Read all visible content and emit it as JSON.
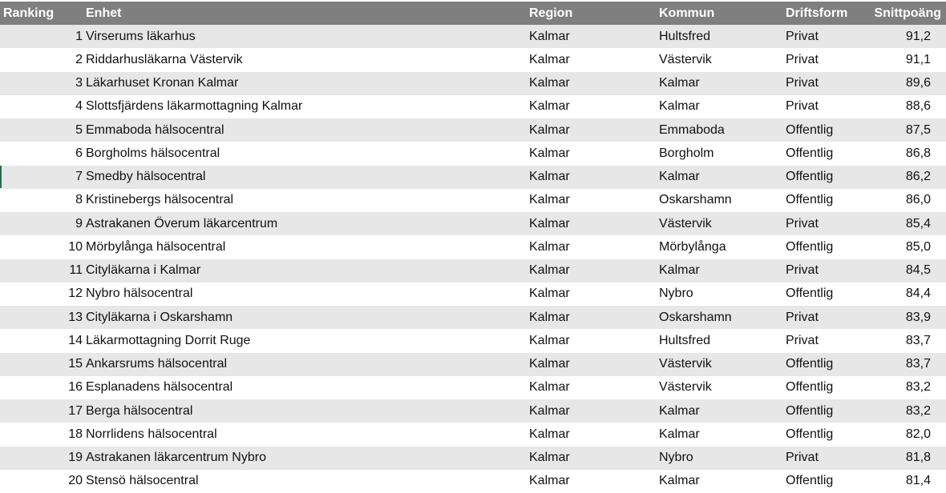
{
  "table": {
    "headers": [
      "Ranking",
      "Enhet",
      "Region",
      "Kommun",
      "Driftsform",
      "Snittpoäng"
    ],
    "rows": [
      [
        "1",
        "Virserums läkarhus",
        "Kalmar",
        "Hultsfred",
        "Privat",
        "91,2"
      ],
      [
        "2",
        "Riddarhusläkarna Västervik",
        "Kalmar",
        "Västervik",
        "Privat",
        "91,1"
      ],
      [
        "3",
        "Läkarhuset Kronan Kalmar",
        "Kalmar",
        "Kalmar",
        "Privat",
        "89,6"
      ],
      [
        "4",
        "Slottsfjärdens läkarmottagning Kalmar",
        "Kalmar",
        "Kalmar",
        "Privat",
        "88,6"
      ],
      [
        "5",
        "Emmaboda hälsocentral",
        "Kalmar",
        "Emmaboda",
        "Offentlig",
        "87,5"
      ],
      [
        "6",
        "Borgholms hälsocentral",
        "Kalmar",
        "Borgholm",
        "Offentlig",
        "86,8"
      ],
      [
        "7",
        "Smedby hälsocentral",
        "Kalmar",
        "Kalmar",
        "Offentlig",
        "86,2"
      ],
      [
        "8",
        "Kristinebergs hälsocentral",
        "Kalmar",
        "Oskarshamn",
        "Offentlig",
        "86,0"
      ],
      [
        "9",
        "Astrakanen Överum läkarcentrum",
        "Kalmar",
        "Västervik",
        "Privat",
        "85,4"
      ],
      [
        "10",
        "Mörbylånga hälsocentral",
        "Kalmar",
        "Mörbylånga",
        "Offentlig",
        "85,0"
      ],
      [
        "11",
        "Cityläkarna i Kalmar",
        "Kalmar",
        "Kalmar",
        "Privat",
        "84,5"
      ],
      [
        "12",
        "Nybro hälsocentral",
        "Kalmar",
        "Nybro",
        "Offentlig",
        "84,4"
      ],
      [
        "13",
        "Cityläkarna i Oskarshamn",
        "Kalmar",
        "Oskarshamn",
        "Privat",
        "83,9"
      ],
      [
        "14",
        "Läkarmottagning Dorrit Ruge",
        "Kalmar",
        "Hultsfred",
        "Privat",
        "83,7"
      ],
      [
        "15",
        "Ankarsrums hälsocentral",
        "Kalmar",
        "Västervik",
        "Offentlig",
        "83,7"
      ],
      [
        "16",
        "Esplanadens hälsocentral",
        "Kalmar",
        "Västervik",
        "Offentlig",
        "83,2"
      ],
      [
        "17",
        "Berga hälsocentral",
        "Kalmar",
        "Kalmar",
        "Offentlig",
        "83,2"
      ],
      [
        "18",
        "Norrlidens hälsocentral",
        "Kalmar",
        "Kalmar",
        "Offentlig",
        "82,0"
      ],
      [
        "19",
        "Astrakanen läkarcentrum Nybro",
        "Kalmar",
        "Nybro",
        "Privat",
        "81,8"
      ],
      [
        "20",
        "Stensö hälsocentral",
        "Kalmar",
        "Kalmar",
        "Offentlig",
        "81,4"
      ]
    ]
  },
  "colors": {
    "header_bg": "#7f7f7f",
    "band": "#e7e7e7",
    "selection": "#1e7145"
  }
}
